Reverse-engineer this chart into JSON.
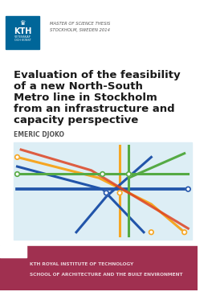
{
  "title_line1": "Evaluation of the feasibility",
  "title_line2": "of a new North-South",
  "title_line3": "Metro line in Stockholm",
  "title_line4": "from an infrastructure and",
  "title_line5": "capacity perspective",
  "author": "EMERIC DJOKO",
  "header_line1": "MASTER OF SCIENCE THESIS",
  "header_line2": "STOCKHOLM, SWEDEN 2014",
  "footer_line1": "KTH ROYAL INSTITUTE OF TECHNOLOGY",
  "footer_line2": "SCHOOL OF ARCHITECTURE AND THE BUILT ENVIRONMENT",
  "bg_color": "#ffffff",
  "header_color": "#555555",
  "title_color": "#1a1a1a",
  "author_color": "#555555",
  "footer_bg": "#a03050",
  "footer_text_color": "#e8d0d8",
  "map_bg": "#ddeef5",
  "kth_blue": "#006699",
  "metro_orange": "#f5a623",
  "metro_blue": "#2255aa",
  "metro_green": "#55aa44",
  "metro_red": "#dd4422",
  "metro_yellow": "#ddcc00",
  "metro_teal": "#44aaaa"
}
